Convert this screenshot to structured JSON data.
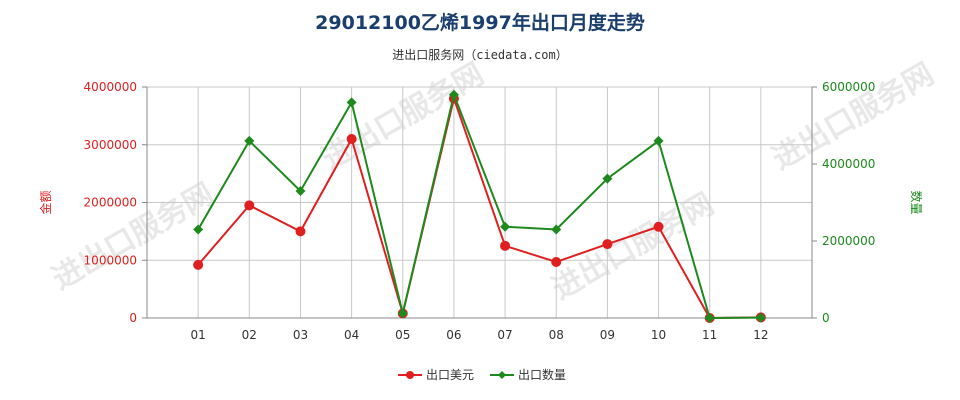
{
  "header": {
    "title": "29012100乙烯1997年出口月度走势",
    "subtitle": "进出口服务网（ciedata.com）"
  },
  "watermark": "进出口服务网",
  "chart_data": {
    "type": "line",
    "categories": [
      "01",
      "02",
      "03",
      "04",
      "05",
      "06",
      "07",
      "08",
      "09",
      "10",
      "11",
      "12"
    ],
    "y_left": {
      "label": "金额",
      "ylim": [
        0,
        4000000
      ],
      "ticks": [
        "0",
        "1000000",
        "2000000",
        "3000000",
        "4000000"
      ],
      "color": "#e02020"
    },
    "y_right": {
      "label": "数量",
      "ylim": [
        0,
        6000000
      ],
      "ticks": [
        "0",
        "2000000",
        "4000000",
        "6000000"
      ],
      "color": "#1e8a1e"
    },
    "series": [
      {
        "name": "出口美元",
        "axis": "left",
        "color": "#e02020",
        "marker": "circle",
        "values": [
          920000,
          1950000,
          1500000,
          3100000,
          80000,
          3800000,
          1250000,
          970000,
          1280000,
          1580000,
          0,
          10000
        ]
      },
      {
        "name": "出口数量",
        "axis": "right",
        "color": "#1e8a1e",
        "marker": "diamond",
        "values": [
          2300000,
          4600000,
          3300000,
          5600000,
          120000,
          5800000,
          2370000,
          2300000,
          3620000,
          4600000,
          0,
          10000
        ]
      }
    ],
    "grid": true,
    "legend": "bottom-center"
  }
}
